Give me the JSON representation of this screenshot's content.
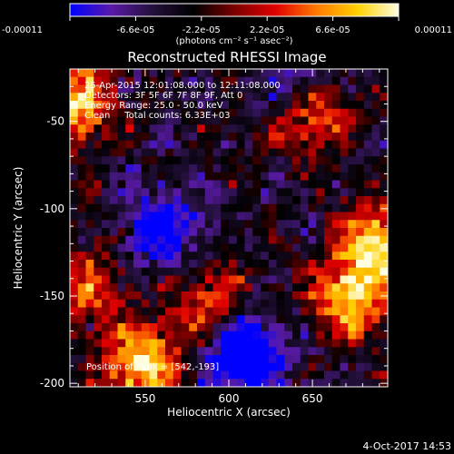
{
  "colorbar": {
    "tick_labels": [
      "-0.00011",
      "-6.6e-05",
      "-2.2e-05",
      "2.2e-05",
      "6.6e-05",
      "0.00011"
    ],
    "units_label": "(photons cm⁻² s⁻¹ asec⁻²)",
    "colormap_stops": [
      "#0000ff",
      "#5a1aaa",
      "#24103c",
      "#000000",
      "#7a0000",
      "#e00000",
      "#ff7a00",
      "#ffd000",
      "#ffffe0"
    ]
  },
  "chart_data": {
    "type": "heatmap",
    "title": "Reconstructed RHESSI Image",
    "xlabel": "Heliocentric X (arcsec)",
    "ylabel": "Heliocentric Y (arcsec)",
    "xlim": [
      505,
      695
    ],
    "ylim": [
      -202,
      -20
    ],
    "x_ticks": [
      550,
      600,
      650
    ],
    "y_ticks": [
      -50,
      -100,
      -150,
      -200
    ],
    "color_range": [
      -0.00011,
      0.00011
    ],
    "grid": false,
    "annotations": {
      "time_range": "25-Apr-2015 12:01:08.000 to 12:11:08.000",
      "detectors": "Detectors: 3F 5F 6F 7F 8F 9F, Att 0",
      "energy": "Energy Range: 25.0 - 50.0 keV",
      "method_counts": "Clean     Total counts: 6.33E+03",
      "peak": "Position of Peak = [542,-193]"
    },
    "peak_position": [
      542,
      -193
    ],
    "bright_regions": [
      {
        "x": 508,
        "y": -40,
        "level": 0.9
      },
      {
        "x": 548,
        "y": -190,
        "level": 1.0
      },
      {
        "x": 690,
        "y": -120,
        "level": 1.0
      },
      {
        "x": 672,
        "y": -150,
        "level": 0.9
      },
      {
        "x": 650,
        "y": -45,
        "level": 0.7
      },
      {
        "x": 590,
        "y": -155,
        "level": 0.55
      },
      {
        "x": 515,
        "y": -145,
        "level": 0.6
      }
    ],
    "dim_regions": [
      {
        "x": 610,
        "y": -182,
        "level": -0.95
      },
      {
        "x": 560,
        "y": -110,
        "level": -0.6
      },
      {
        "x": 640,
        "y": -25,
        "level": -0.5
      }
    ]
  },
  "footer": {
    "date": "4-Oct-2017 14:53"
  }
}
